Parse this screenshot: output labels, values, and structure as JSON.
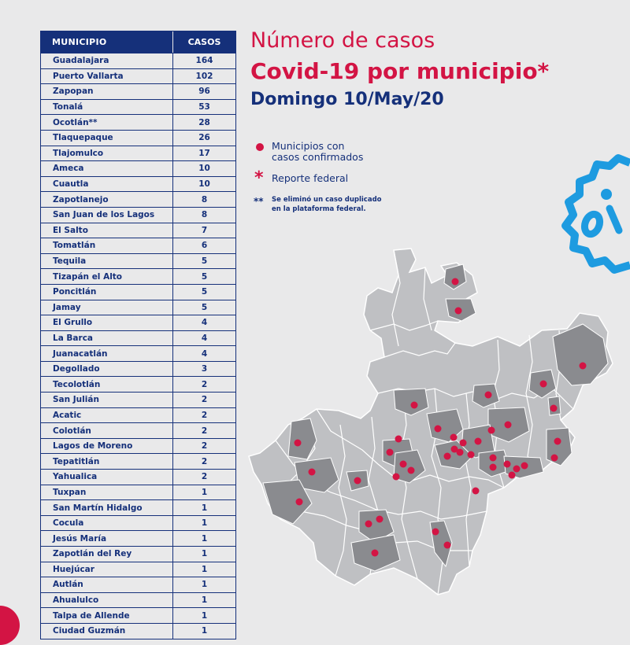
{
  "table": {
    "header": {
      "municipio": "MUNICIPIO",
      "casos": "CASOS"
    },
    "rows": [
      {
        "m": "Guadalajara",
        "c": "164"
      },
      {
        "m": "Puerto Vallarta",
        "c": "102"
      },
      {
        "m": "Zapopan",
        "c": "96"
      },
      {
        "m": "Tonalá",
        "c": "53"
      },
      {
        "m": "Ocotlán**",
        "c": "28"
      },
      {
        "m": "Tlaquepaque",
        "c": "26"
      },
      {
        "m": "Tlajomulco",
        "c": "17"
      },
      {
        "m": "Ameca",
        "c": "10"
      },
      {
        "m": "Cuautla",
        "c": "10"
      },
      {
        "m": "Zapotlanejo",
        "c": "8"
      },
      {
        "m": "San Juan de los Lagos",
        "c": "8"
      },
      {
        "m": "El Salto",
        "c": "7"
      },
      {
        "m": "Tomatlán",
        "c": "6"
      },
      {
        "m": "Tequila",
        "c": "5"
      },
      {
        "m": "Tizapán el Alto",
        "c": "5"
      },
      {
        "m": "Poncitlán",
        "c": "5"
      },
      {
        "m": "Jamay",
        "c": "5"
      },
      {
        "m": "El Grullo",
        "c": "4"
      },
      {
        "m": "La Barca",
        "c": "4"
      },
      {
        "m": "Juanacatlán",
        "c": "4"
      },
      {
        "m": "Degollado",
        "c": "3"
      },
      {
        "m": "Tecolotlán",
        "c": "2"
      },
      {
        "m": "San Julián",
        "c": "2"
      },
      {
        "m": "Acatic",
        "c": "2"
      },
      {
        "m": "Colotlán",
        "c": "2"
      },
      {
        "m": "Lagos de Moreno",
        "c": "2"
      },
      {
        "m": "Tepatitlán",
        "c": "2"
      },
      {
        "m": "Yahualica",
        "c": "2"
      },
      {
        "m": "Tuxpan",
        "c": "1"
      },
      {
        "m": "San Martín Hidalgo",
        "c": "1"
      },
      {
        "m": "Cocula",
        "c": "1"
      },
      {
        "m": "Jesús María",
        "c": "1"
      },
      {
        "m": "Zapotlán del Rey",
        "c": "1"
      },
      {
        "m": "Huejúcar",
        "c": "1"
      },
      {
        "m": "Autlán",
        "c": "1"
      },
      {
        "m": "Ahualulco",
        "c": "1"
      },
      {
        "m": "Talpa de Allende",
        "c": "1"
      },
      {
        "m": "Ciudad Guzmán",
        "c": "1"
      }
    ]
  },
  "title": {
    "line1": "Número de casos",
    "line2": "Covid-19 por municipio*",
    "line3": "Domingo 10/May/20"
  },
  "legend": {
    "confirmed_line1": "Municipios con",
    "confirmed_line2": "casos confirmados",
    "federal": "Reporte federal",
    "note_line1": "Se eliminó un caso duplicado",
    "note_line2": "en la plataforma federal."
  },
  "colors": {
    "navy": "#15307a",
    "red": "#d31444",
    "background": "#e9e9ea",
    "map_light": "#bfc0c3",
    "map_dark": "#8a8b8f",
    "virus_blue": "#1e9be0"
  },
  "icons": {
    "virus": "virus-icon",
    "dot": "dot-icon",
    "asterisk": "asterisk-icon"
  }
}
